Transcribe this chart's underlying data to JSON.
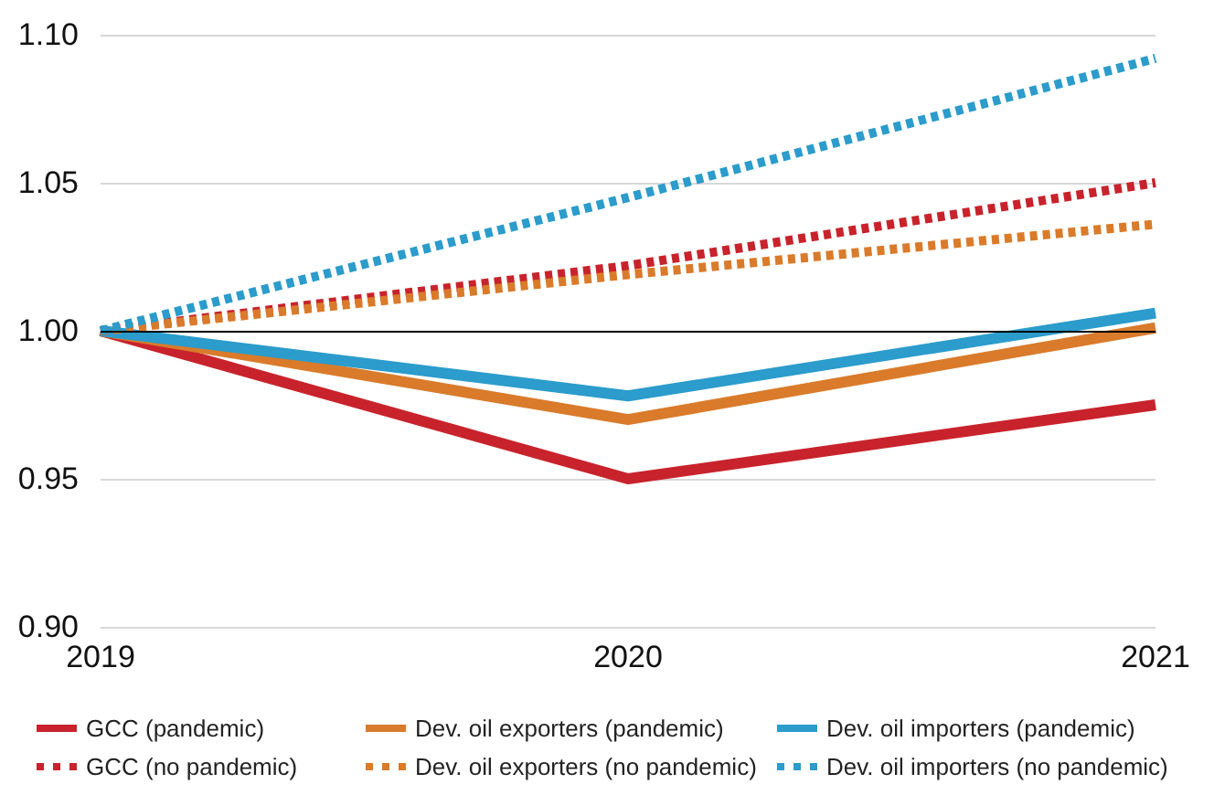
{
  "chart_data": {
    "type": "line",
    "categories": [
      "2019",
      "2020",
      "2021"
    ],
    "series": [
      {
        "name": "GCC (pandemic)",
        "color": "#c8232c",
        "values": [
          1.0,
          0.95,
          0.975
        ],
        "line_style": "solid"
      },
      {
        "name": "Dev. oil exporters (pandemic)",
        "color": "#d97b2b",
        "values": [
          1.0,
          0.97,
          1.001
        ],
        "line_style": "solid"
      },
      {
        "name": "Dev. oil importers (pandemic)",
        "color": "#2b9ccb",
        "values": [
          1.0,
          0.978,
          1.006
        ],
        "line_style": "solid"
      },
      {
        "name": "GCC (no pandemic)",
        "color": "#c8232c",
        "values": [
          1.0,
          1.022,
          1.05
        ],
        "line_style": "dashed"
      },
      {
        "name": "Dev. oil exporters (no pandemic)",
        "color": "#d97b2b",
        "values": [
          1.0,
          1.019,
          1.036
        ],
        "line_style": "dashed"
      },
      {
        "name": "Dev. oil importers (no pandemic)",
        "color": "#2b9ccb",
        "values": [
          1.0,
          1.045,
          1.092
        ],
        "line_style": "dashed"
      }
    ],
    "ylim": [
      0.9,
      1.1
    ],
    "yticks": [
      {
        "value": 0.9,
        "label": "0.90"
      },
      {
        "value": 0.95,
        "label": "0.95"
      },
      {
        "value": 1.0,
        "label": "1.00"
      },
      {
        "value": 1.05,
        "label": "1.05"
      },
      {
        "value": 1.1,
        "label": "1.10"
      }
    ],
    "grid": "y",
    "legend": "bottom",
    "marker": "none",
    "ref_lines": [
      {
        "axis": "y",
        "value": 1.0,
        "color": "#000000"
      }
    ]
  }
}
